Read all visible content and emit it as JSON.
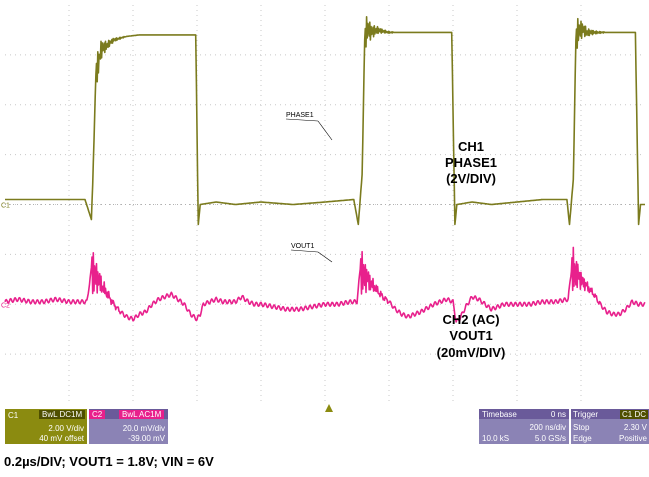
{
  "colors": {
    "grid": "#c8c8c8",
    "ch1": "#7b7b1e",
    "ch2": "#e8208c",
    "ch1_panel": "#8b8b10",
    "ch1_badge": "#4f4f00",
    "ch2_panel": "#8b83b5",
    "ch2_badge": "#e8208c",
    "ch2_head": "#6a5a9a",
    "tb_panel": "#8b83b5",
    "tb_head": "#6a5a9a",
    "marker": "#8b8b10"
  },
  "chart_data": {
    "type": "line",
    "title": "",
    "xlabel": "",
    "ylabel": "",
    "xlim": [
      0,
      10
    ],
    "ylim": [
      -4,
      4
    ],
    "grid": true,
    "x_unit": "div",
    "y_unit": "div",
    "series": [
      {
        "name": "CH1",
        "probe_label": "PHASE1",
        "x": [
          0,
          1.25,
          1.35,
          1.37,
          1.42,
          1.5,
          1.7,
          1.9,
          2.1,
          2.35,
          2.98,
          3.02,
          3.05,
          3.3,
          3.6,
          4.0,
          4.5,
          5.0,
          5.45,
          5.52,
          5.58,
          5.62,
          5.66,
          5.72,
          5.8,
          6.0,
          6.2,
          6.4,
          6.6,
          6.8,
          6.98,
          7.03,
          7.06,
          7.3,
          7.6,
          8.0,
          8.4,
          8.78,
          8.82,
          8.88,
          8.92,
          8.96,
          9.03,
          9.1,
          9.3,
          9.5,
          9.7,
          9.85,
          9.9,
          9.93,
          10.0
        ],
        "y": [
          0.1,
          0.1,
          -0.3,
          0.4,
          2.6,
          3.1,
          3.3,
          3.37,
          3.4,
          3.4,
          3.4,
          -0.4,
          0.0,
          0.05,
          0.0,
          0.05,
          0.0,
          0.05,
          0.1,
          -0.4,
          0.6,
          3.3,
          3.55,
          3.45,
          3.5,
          3.45,
          3.45,
          3.45,
          3.45,
          3.45,
          3.45,
          -0.4,
          0.0,
          0.05,
          0.0,
          0.05,
          0.1,
          0.1,
          -0.4,
          0.5,
          3.3,
          3.5,
          3.5,
          3.45,
          3.45,
          3.45,
          3.45,
          3.45,
          -0.4,
          0.0,
          0.0
        ]
      },
      {
        "name": "CH2 (AC)",
        "probe_label": "VOUT1",
        "x": [
          0,
          0.2,
          0.4,
          0.6,
          0.8,
          1.0,
          1.2,
          1.28,
          1.35,
          1.4,
          1.5,
          1.6,
          1.7,
          1.8,
          1.9,
          2.0,
          2.1,
          2.2,
          2.3,
          2.4,
          2.5,
          2.6,
          2.7,
          2.8,
          2.9,
          3.0,
          3.05,
          3.1,
          3.2,
          3.3,
          3.4,
          3.5,
          3.6,
          3.7,
          3.8,
          3.9,
          4.0,
          4.2,
          4.4,
          4.6,
          4.8,
          5.0,
          5.2,
          5.4,
          5.5,
          5.55,
          5.6,
          5.7,
          5.8,
          5.9,
          6.0,
          6.1,
          6.2,
          6.3,
          6.5,
          6.7,
          6.9,
          7.0,
          7.05,
          7.1,
          7.2,
          7.3,
          7.4,
          7.5,
          7.6,
          7.7,
          7.8,
          8.0,
          8.2,
          8.4,
          8.6,
          8.8,
          8.85,
          8.9,
          9.0,
          9.1,
          9.2,
          9.3,
          9.4,
          9.5,
          9.6,
          9.7,
          9.8,
          9.9,
          10.0
        ],
        "y": [
          -1.95,
          -1.9,
          -1.95,
          -1.95,
          -1.9,
          -1.95,
          -1.95,
          -1.95,
          -1.3,
          -1.4,
          -1.6,
          -1.8,
          -2.0,
          -2.15,
          -2.25,
          -2.3,
          -2.2,
          -2.15,
          -2.0,
          -1.9,
          -1.85,
          -1.8,
          -1.9,
          -2.0,
          -2.2,
          -2.3,
          -2.2,
          -2.0,
          -1.95,
          -1.9,
          -1.95,
          -1.95,
          -1.95,
          -1.85,
          -1.95,
          -2.0,
          -2.0,
          -2.05,
          -2.1,
          -2.1,
          -2.05,
          -2.0,
          -2.0,
          -1.95,
          -1.95,
          -1.3,
          -1.4,
          -1.55,
          -1.7,
          -1.85,
          -1.95,
          -2.1,
          -2.2,
          -2.25,
          -2.15,
          -2.0,
          -1.9,
          -1.95,
          -2.35,
          -2.3,
          -2.05,
          -1.85,
          -1.9,
          -2.0,
          -2.1,
          -2.05,
          -2.0,
          -2.0,
          -2.0,
          -1.95,
          -1.95,
          -1.9,
          -1.3,
          -1.35,
          -1.5,
          -1.65,
          -1.8,
          -2.0,
          -2.15,
          -2.2,
          -2.2,
          -2.1,
          -1.95,
          -2.0,
          -2.0
        ]
      }
    ],
    "annotations": [
      {
        "id": "ch1_lines",
        "lines": [
          "CH1",
          "PHASE1",
          "(2V/DIV)"
        ]
      },
      {
        "id": "ch2_lines",
        "lines": [
          "CH2 (AC)",
          "VOUT1",
          "(20mV/DIV)"
        ]
      }
    ],
    "ticks": {
      "left_markers": [
        "C1",
        "C2"
      ]
    }
  },
  "info_bar": {
    "ch1": {
      "label": "C1",
      "badge": "BwL DC1M",
      "volts_div": "2.00 V/div",
      "offset": "40 mV offset"
    },
    "ch2": {
      "label": "C2",
      "badge": "BwL AC1M",
      "volts_div": "20.0 mV/div",
      "offset": "-39.00 mV"
    },
    "timebase": {
      "label": "Timebase",
      "delay": "0 ns",
      "time_div": "200 ns/div",
      "samples": "10.0 kS",
      "rate": "5.0 GS/s"
    },
    "trigger": {
      "label": "Trigger",
      "badge": "C1 DC",
      "mode": "Stop",
      "level": "2.30 V",
      "type": "Edge",
      "slope": "Positive"
    }
  },
  "footer": "0.2µs/DIV; VOUT1 = 1.8V; VIN = 6V"
}
